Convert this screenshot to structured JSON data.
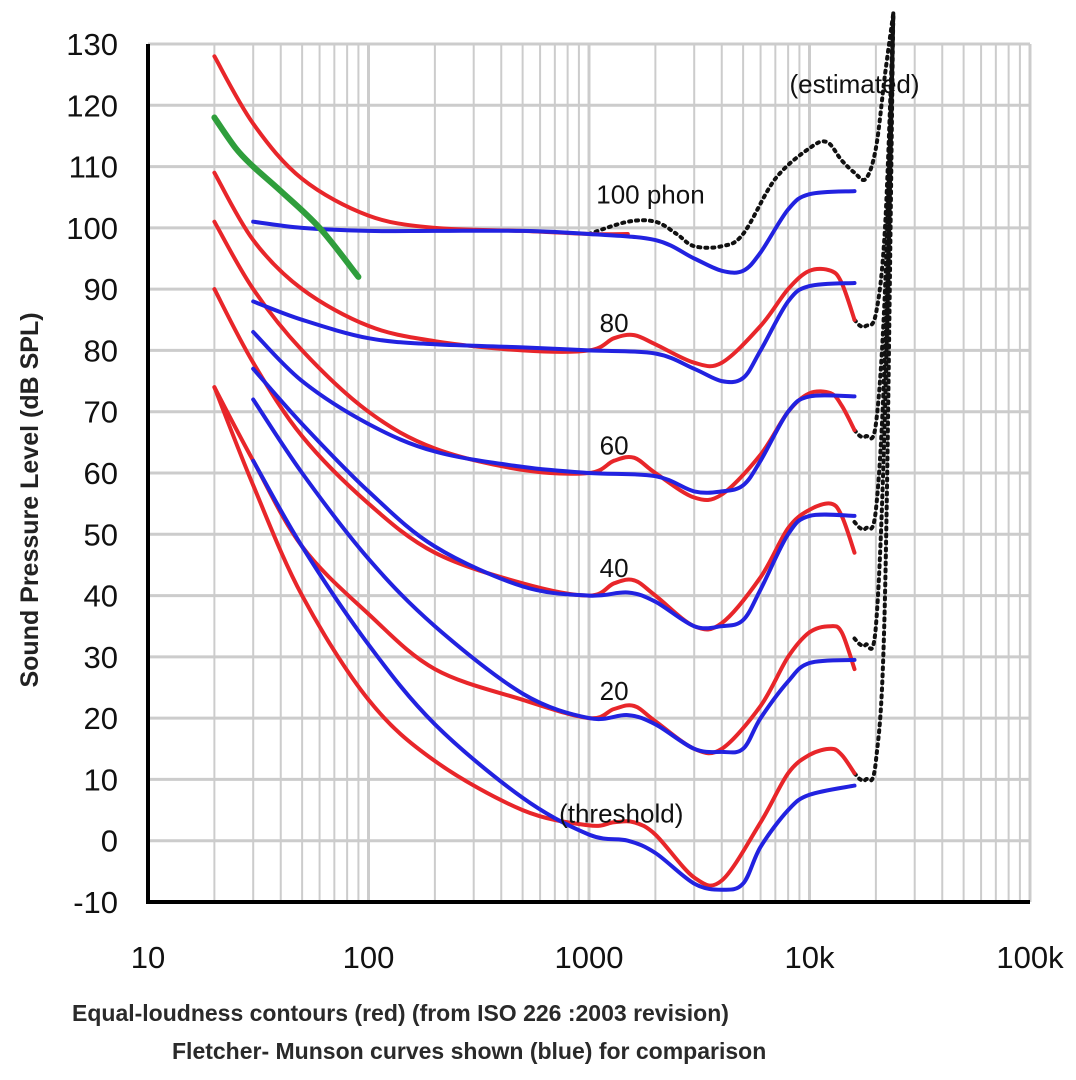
{
  "chart_data": {
    "type": "line",
    "x_scale": "log",
    "xlim": [
      10,
      100000
    ],
    "ylim": [
      -10,
      130
    ],
    "grid": true,
    "ylabel": "Sound Pressure Level (dB SPL)",
    "x_tick_labels": [
      {
        "value": 10,
        "label": "10"
      },
      {
        "value": 100,
        "label": "100"
      },
      {
        "value": 1000,
        "label": "1000"
      },
      {
        "value": 10000,
        "label": "10k"
      },
      {
        "value": 100000,
        "label": "100k"
      }
    ],
    "y_ticks": [
      130,
      120,
      110,
      100,
      90,
      80,
      70,
      60,
      50,
      40,
      30,
      20,
      10,
      0,
      -10
    ],
    "caption_line1": "Equal-loudness contours (red) (from ISO 226 :2003 revision)",
    "caption_line2": "Fletcher- Munson curves shown (blue) for comparison",
    "annotations": [
      {
        "text": "(estimated)",
        "x": 16000,
        "y": 122
      },
      {
        "text": "100 phon",
        "x": 1900,
        "y": 104
      },
      {
        "text": "80",
        "x": 1300,
        "y": 83
      },
      {
        "text": "60",
        "x": 1300,
        "y": 63
      },
      {
        "text": "40",
        "x": 1300,
        "y": 43
      },
      {
        "text": "20",
        "x": 1300,
        "y": 23
      },
      {
        "text": "(threshold)",
        "x": 1400,
        "y": 3
      }
    ],
    "colors": {
      "red": "#e8262a",
      "blue": "#2222e0",
      "green": "#2f9e3c",
      "dotted": "#111111",
      "grid": "#cccccc"
    },
    "series": [
      {
        "color": "red",
        "points": [
          [
            20,
            128
          ],
          [
            30,
            117
          ],
          [
            50,
            108
          ],
          [
            100,
            102
          ],
          [
            200,
            100
          ],
          [
            500,
            99.5
          ],
          [
            1000,
            99
          ],
          [
            1500,
            99
          ]
        ]
      },
      {
        "color": "red",
        "points": [
          [
            20,
            109
          ],
          [
            30,
            98
          ],
          [
            50,
            90
          ],
          [
            100,
            84
          ],
          [
            200,
            81.5
          ],
          [
            500,
            80
          ],
          [
            1000,
            80
          ],
          [
            1300,
            82
          ],
          [
            1600,
            82.5
          ],
          [
            2000,
            81
          ],
          [
            3000,
            78
          ],
          [
            4000,
            78
          ],
          [
            6000,
            84
          ],
          [
            8000,
            90
          ],
          [
            10000,
            93
          ],
          [
            12500,
            93
          ],
          [
            14000,
            91
          ],
          [
            16000,
            85
          ]
        ]
      },
      {
        "color": "red",
        "points": [
          [
            20,
            101
          ],
          [
            30,
            90
          ],
          [
            50,
            80
          ],
          [
            100,
            70
          ],
          [
            200,
            64
          ],
          [
            500,
            60.5
          ],
          [
            1000,
            60
          ],
          [
            1300,
            62
          ],
          [
            1600,
            62.5
          ],
          [
            2000,
            60
          ],
          [
            3000,
            56
          ],
          [
            4000,
            56.5
          ],
          [
            6000,
            63
          ],
          [
            8000,
            70
          ],
          [
            10000,
            73
          ],
          [
            12500,
            73
          ],
          [
            14000,
            71
          ],
          [
            16000,
            67
          ]
        ]
      },
      {
        "color": "red",
        "points": [
          [
            20,
            90
          ],
          [
            30,
            78
          ],
          [
            50,
            66
          ],
          [
            100,
            55
          ],
          [
            200,
            47
          ],
          [
            500,
            42
          ],
          [
            1000,
            40
          ],
          [
            1300,
            42
          ],
          [
            1600,
            42.5
          ],
          [
            2000,
            40
          ],
          [
            3000,
            35
          ],
          [
            4000,
            35.5
          ],
          [
            6000,
            43
          ],
          [
            8000,
            51
          ],
          [
            10000,
            54
          ],
          [
            12500,
            55
          ],
          [
            14000,
            53
          ],
          [
            16000,
            47
          ]
        ]
      },
      {
        "color": "red",
        "points": [
          [
            20,
            74
          ],
          [
            30,
            62
          ],
          [
            50,
            48
          ],
          [
            100,
            37
          ],
          [
            200,
            28
          ],
          [
            500,
            23
          ],
          [
            1000,
            20
          ],
          [
            1300,
            21.5
          ],
          [
            1600,
            22
          ],
          [
            2000,
            19.5
          ],
          [
            3000,
            15
          ],
          [
            4000,
            15
          ],
          [
            6000,
            22
          ],
          [
            8000,
            30
          ],
          [
            10000,
            34
          ],
          [
            12500,
            35
          ],
          [
            14000,
            34
          ],
          [
            16000,
            28
          ]
        ]
      },
      {
        "color": "red",
        "points": [
          [
            20,
            74
          ],
          [
            30,
            58
          ],
          [
            50,
            40
          ],
          [
            100,
            23
          ],
          [
            200,
            13
          ],
          [
            500,
            5
          ],
          [
            1000,
            2.5
          ],
          [
            1300,
            3
          ],
          [
            1600,
            3
          ],
          [
            2000,
            1
          ],
          [
            3000,
            -6
          ],
          [
            4000,
            -6.5
          ],
          [
            6000,
            3
          ],
          [
            8000,
            11
          ],
          [
            10000,
            14
          ],
          [
            12500,
            15
          ],
          [
            14000,
            14
          ],
          [
            16000,
            11
          ]
        ]
      },
      {
        "color": "blue",
        "points": [
          [
            30,
            101
          ],
          [
            50,
            100
          ],
          [
            100,
            99.5
          ],
          [
            200,
            99.5
          ],
          [
            500,
            99.5
          ],
          [
            1000,
            99
          ],
          [
            2000,
            98
          ],
          [
            3000,
            95
          ],
          [
            4000,
            93
          ],
          [
            5000,
            93
          ],
          [
            6000,
            96
          ],
          [
            8000,
            103
          ],
          [
            10000,
            105.5
          ],
          [
            16000,
            106
          ]
        ]
      },
      {
        "color": "blue",
        "points": [
          [
            30,
            88
          ],
          [
            50,
            85
          ],
          [
            100,
            82
          ],
          [
            200,
            81
          ],
          [
            500,
            80.5
          ],
          [
            1000,
            80
          ],
          [
            2000,
            79.5
          ],
          [
            3000,
            77
          ],
          [
            4000,
            75
          ],
          [
            5000,
            75.5
          ],
          [
            6000,
            80
          ],
          [
            8000,
            88
          ],
          [
            10000,
            90.5
          ],
          [
            16000,
            91
          ]
        ]
      },
      {
        "color": "blue",
        "points": [
          [
            30,
            83
          ],
          [
            50,
            75
          ],
          [
            100,
            68
          ],
          [
            200,
            63.5
          ],
          [
            500,
            61
          ],
          [
            1000,
            60
          ],
          [
            2000,
            59.5
          ],
          [
            3000,
            57
          ],
          [
            4000,
            57
          ],
          [
            5000,
            58
          ],
          [
            6000,
            62
          ],
          [
            8000,
            70
          ],
          [
            10000,
            72.5
          ],
          [
            16000,
            72.5
          ]
        ]
      },
      {
        "color": "blue",
        "points": [
          [
            30,
            77
          ],
          [
            50,
            68
          ],
          [
            100,
            57
          ],
          [
            200,
            48
          ],
          [
            500,
            41.5
          ],
          [
            1000,
            40
          ],
          [
            1500,
            40.5
          ],
          [
            2000,
            39
          ],
          [
            3000,
            35
          ],
          [
            4000,
            35
          ],
          [
            5000,
            36
          ],
          [
            6000,
            41
          ],
          [
            8000,
            50
          ],
          [
            10000,
            53
          ],
          [
            16000,
            53
          ]
        ]
      },
      {
        "color": "blue",
        "points": [
          [
            30,
            72
          ],
          [
            50,
            60
          ],
          [
            100,
            46
          ],
          [
            200,
            35
          ],
          [
            500,
            24
          ],
          [
            1000,
            20
          ],
          [
            1500,
            20.5
          ],
          [
            2000,
            19
          ],
          [
            3000,
            15
          ],
          [
            4000,
            14.5
          ],
          [
            5000,
            15
          ],
          [
            6000,
            20
          ],
          [
            8000,
            26
          ],
          [
            10000,
            29
          ],
          [
            16000,
            29.5
          ]
        ]
      },
      {
        "color": "blue",
        "points": [
          [
            30,
            62
          ],
          [
            50,
            48
          ],
          [
            100,
            32
          ],
          [
            200,
            19
          ],
          [
            500,
            7
          ],
          [
            1000,
            1
          ],
          [
            1500,
            0
          ],
          [
            2000,
            -2
          ],
          [
            3000,
            -7
          ],
          [
            4000,
            -8
          ],
          [
            5000,
            -7
          ],
          [
            6000,
            -1
          ],
          [
            8000,
            5
          ],
          [
            10000,
            7.5
          ],
          [
            16000,
            9
          ]
        ]
      },
      {
        "color": "dotted",
        "points": [
          [
            1000,
            99
          ],
          [
            1500,
            101
          ],
          [
            2000,
            101
          ],
          [
            2500,
            99
          ],
          [
            3000,
            97
          ],
          [
            4000,
            97
          ],
          [
            5000,
            99
          ],
          [
            7000,
            108
          ],
          [
            10000,
            113
          ],
          [
            12000,
            114
          ],
          [
            14000,
            111
          ],
          [
            16000,
            109
          ],
          [
            18000,
            108
          ],
          [
            20000,
            113
          ],
          [
            22000,
            125
          ],
          [
            24000,
            135
          ]
        ]
      },
      {
        "color": "dotted",
        "points": [
          [
            16000,
            85
          ],
          [
            17000,
            84
          ],
          [
            18000,
            84
          ],
          [
            20000,
            86
          ],
          [
            22000,
            100
          ],
          [
            24000,
            135
          ]
        ]
      },
      {
        "color": "dotted",
        "points": [
          [
            16000,
            67
          ],
          [
            17000,
            66
          ],
          [
            18000,
            66
          ],
          [
            20000,
            68
          ],
          [
            22000,
            90
          ],
          [
            24000,
            135
          ]
        ]
      },
      {
        "color": "dotted",
        "points": [
          [
            16000,
            52
          ],
          [
            17000,
            51
          ],
          [
            18000,
            51
          ],
          [
            20000,
            54
          ],
          [
            22000,
            80
          ],
          [
            24000,
            135
          ]
        ]
      },
      {
        "color": "dotted",
        "points": [
          [
            16000,
            33
          ],
          [
            17000,
            32
          ],
          [
            18000,
            32
          ],
          [
            20000,
            35
          ],
          [
            22000,
            70
          ],
          [
            24000,
            135
          ]
        ]
      },
      {
        "color": "dotted",
        "points": [
          [
            16000,
            11
          ],
          [
            17000,
            10
          ],
          [
            18000,
            10
          ],
          [
            20000,
            13
          ],
          [
            22000,
            40
          ],
          [
            24000,
            135
          ]
        ]
      },
      {
        "color": "green",
        "points": [
          [
            20,
            118
          ],
          [
            25,
            113
          ],
          [
            30,
            110
          ],
          [
            40,
            106
          ],
          [
            60,
            100
          ],
          [
            90,
            92
          ]
        ]
      }
    ]
  }
}
